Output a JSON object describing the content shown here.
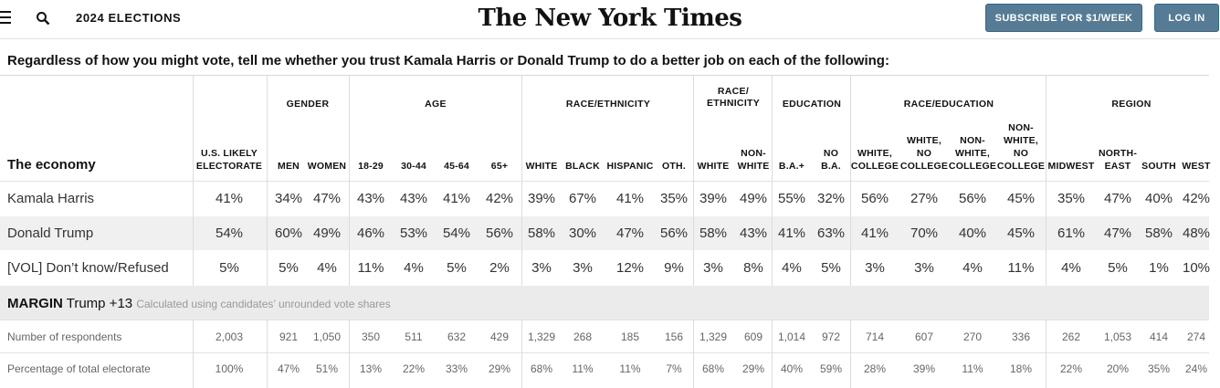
{
  "header": {
    "section": "2024 ELECTIONS",
    "logo": "The New York Times",
    "subscribe": "SUBSCRIBE FOR $1/WEEK",
    "login": "LOG IN"
  },
  "question": "Regardless of how you might vote, tell me whether you trust Kamala Harris or Donald Trump to do a better job on each of the following:",
  "topic": "The economy",
  "groups": [
    "GENDER",
    "AGE",
    "RACE/ETHNICITY",
    "RACE/",
    "ETHNICITY",
    "EDUCATION",
    "RACE/EDUCATION",
    "REGION"
  ],
  "columns": [
    [
      "U.S. LIKELY",
      "ELECTORATE"
    ],
    [
      "MEN"
    ],
    [
      "WOMEN"
    ],
    [
      "18-29"
    ],
    [
      "30-44"
    ],
    [
      "45-64"
    ],
    [
      "65+"
    ],
    [
      "WHITE"
    ],
    [
      "BLACK"
    ],
    [
      "HISPANIC"
    ],
    [
      "OTH."
    ],
    [
      "WHITE"
    ],
    [
      "NON-",
      "WHITE"
    ],
    [
      "B.A.+"
    ],
    [
      "NO",
      "B.A."
    ],
    [
      "WHITE,",
      "COLLEGE"
    ],
    [
      "WHITE,",
      "NO",
      "COLLEGE"
    ],
    [
      "NON-",
      "WHITE,",
      "COLLEGE"
    ],
    [
      "NON-",
      "WHITE,",
      "NO",
      "COLLEGE"
    ],
    [
      "MIDWEST"
    ],
    [
      "NORTH-",
      "EAST"
    ],
    [
      "SOUTH"
    ],
    [
      "WEST"
    ]
  ],
  "rows": [
    {
      "label": "Kamala Harris",
      "values": [
        "41%",
        "34%",
        "47%",
        "43%",
        "43%",
        "41%",
        "42%",
        "39%",
        "67%",
        "41%",
        "35%",
        "39%",
        "49%",
        "55%",
        "32%",
        "56%",
        "27%",
        "56%",
        "45%",
        "35%",
        "47%",
        "40%",
        "42%"
      ]
    },
    {
      "label": "Donald Trump",
      "values": [
        "54%",
        "60%",
        "49%",
        "46%",
        "53%",
        "54%",
        "56%",
        "58%",
        "30%",
        "47%",
        "56%",
        "58%",
        "43%",
        "41%",
        "63%",
        "41%",
        "70%",
        "40%",
        "45%",
        "61%",
        "47%",
        "58%",
        "48%"
      ]
    },
    {
      "label": "[VOL] Don’t know/Refused",
      "values": [
        "5%",
        "5%",
        "4%",
        "11%",
        "4%",
        "5%",
        "2%",
        "3%",
        "3%",
        "12%",
        "9%",
        "3%",
        "8%",
        "4%",
        "5%",
        "3%",
        "3%",
        "4%",
        "11%",
        "4%",
        "5%",
        "1%",
        "10%"
      ]
    }
  ],
  "margin": {
    "label": "MARGIN",
    "value": "Trump +13",
    "note": "Calculated using candidates’ unrounded vote shares"
  },
  "stats": [
    {
      "label": "Number of respondents",
      "values": [
        "2,003",
        "921",
        "1,050",
        "350",
        "511",
        "632",
        "429",
        "1,329",
        "268",
        "185",
        "156",
        "1,329",
        "609",
        "1,014",
        "972",
        "714",
        "607",
        "270",
        "336",
        "262",
        "1,053",
        "414",
        "274"
      ]
    },
    {
      "label": "Percentage of total electorate",
      "values": [
        "100%",
        "47%",
        "51%",
        "13%",
        "22%",
        "33%",
        "29%",
        "68%",
        "11%",
        "11%",
        "7%",
        "68%",
        "29%",
        "40%",
        "59%",
        "28%",
        "39%",
        "11%",
        "18%",
        "22%",
        "20%",
        "35%",
        "24%"
      ]
    }
  ]
}
